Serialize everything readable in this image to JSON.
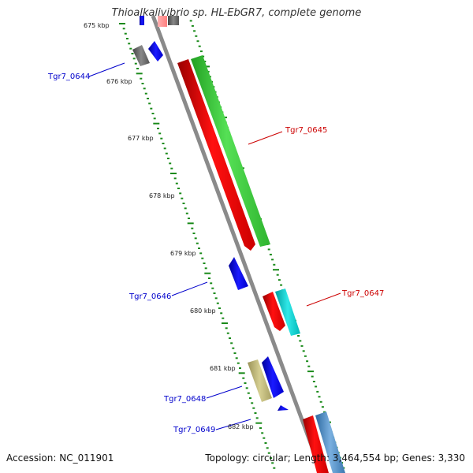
{
  "title": "Thioalkalivibrio sp. HL-EbGR7, complete genome",
  "footer": {
    "accession": "Accession: NC_011901",
    "summary": "Topology: circular; Length: 3,464,554 bp; Genes: 3,330"
  },
  "kbp_ticks": [
    "675 kbp",
    "676 kbp",
    "677 kbp",
    "678 kbp",
    "679 kbp",
    "680 kbp",
    "681 kbp",
    "682 kbp"
  ],
  "gene_labels": [
    {
      "id": "Tgr7_0644",
      "color": "#0000cc",
      "side": "left"
    },
    {
      "id": "Tgr7_0645",
      "color": "#cc0000",
      "side": "right"
    },
    {
      "id": "Tgr7_0646",
      "color": "#0000cc",
      "side": "left"
    },
    {
      "id": "Tgr7_0647",
      "color": "#cc0000",
      "side": "right"
    },
    {
      "id": "Tgr7_0648",
      "color": "#0000cc",
      "side": "left"
    },
    {
      "id": "Tgr7_0649",
      "color": "#0000cc",
      "side": "left"
    }
  ],
  "colors": {
    "backbone": "#8a8a8a",
    "tick_green": "#1a8a1a",
    "red_feature": "#ee0000",
    "green_feature": "#33cc33",
    "blue_feature": "#0000ee",
    "cyan_feature": "#00cccc",
    "gray_feature": "#666666",
    "khaki_feature": "#b8b070",
    "steel_feature": "#4a86c0"
  }
}
